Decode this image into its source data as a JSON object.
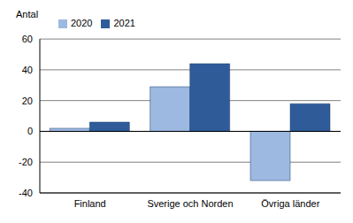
{
  "chart_data": {
    "type": "bar",
    "y_label": "Antal",
    "categories": [
      "Finland",
      "Sverige och Norden",
      "Övriga länder"
    ],
    "series": [
      {
        "name": "2020",
        "color": "#9db9e1",
        "values": [
          2,
          29,
          -32
        ]
      },
      {
        "name": "2021",
        "color": "#2f5c99",
        "values": [
          6,
          44,
          18
        ]
      }
    ],
    "ylim": [
      -40,
      60
    ],
    "yticks": [
      -40,
      -20,
      0,
      20,
      40,
      60
    ],
    "grid": true,
    "legend": "top-left"
  }
}
